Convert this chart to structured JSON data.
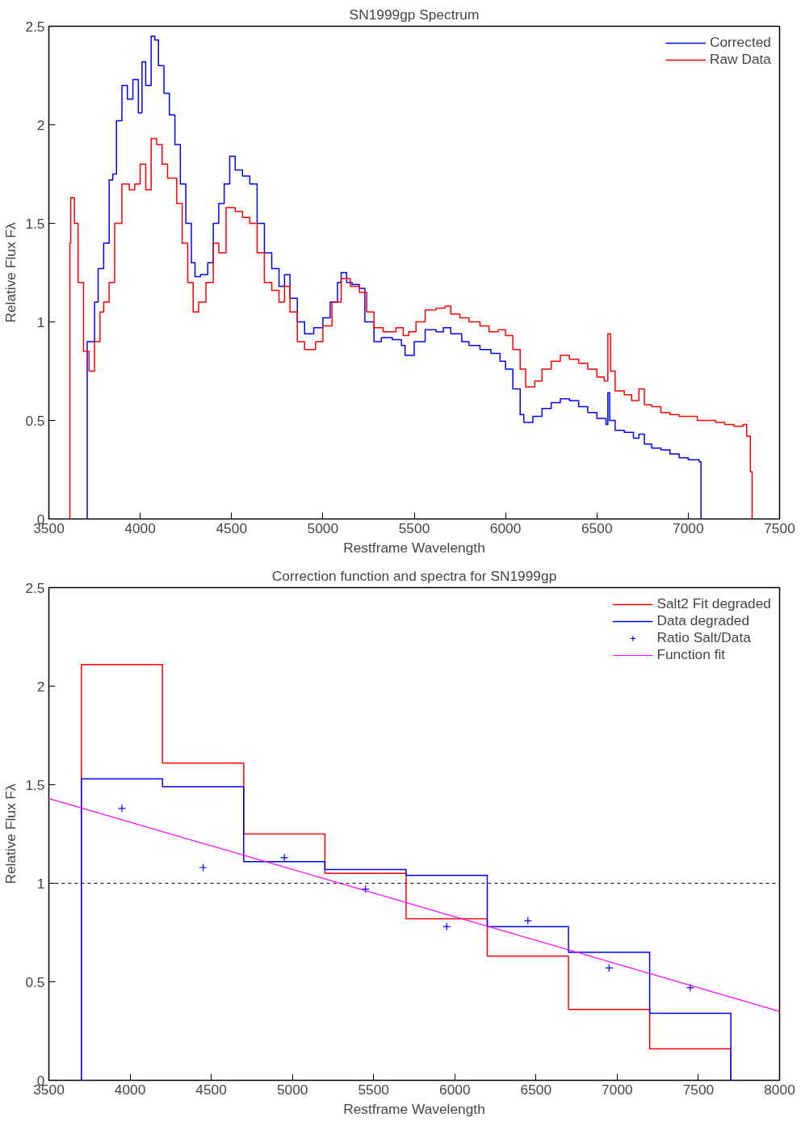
{
  "chart_data": [
    {
      "type": "step",
      "title": "SN1999gp Spectrum",
      "xlabel": "Restframe Wavelength",
      "ylabel": "Relative Flux Fλ",
      "xlim": [
        3500,
        7500
      ],
      "ylim": [
        0,
        2.5
      ],
      "xticks": [
        3500,
        4000,
        4500,
        5000,
        5500,
        6000,
        6500,
        7000,
        7500
      ],
      "yticks": [
        0,
        0.5,
        1,
        1.5,
        2,
        2.5
      ],
      "grid": false,
      "legend": "top right",
      "series": [
        {
          "name": "Corrected",
          "color": "#0000ff",
          "x": [
            3700,
            3710,
            3750,
            3770,
            3800,
            3830,
            3850,
            3870,
            3900,
            3930,
            3960,
            3990,
            4010,
            4030,
            4060,
            4080,
            4100,
            4130,
            4160,
            4190,
            4220,
            4250,
            4280,
            4300,
            4330,
            4370,
            4400,
            4430,
            4460,
            4490,
            4520,
            4560,
            4600,
            4640,
            4680,
            4720,
            4760,
            4790,
            4820,
            4860,
            4900,
            4950,
            5000,
            5040,
            5080,
            5100,
            5130,
            5160,
            5200,
            5230,
            5280,
            5320,
            5380,
            5430,
            5450,
            5500,
            5560,
            5620,
            5660,
            5700,
            5760,
            5800,
            5860,
            5920,
            5970,
            6000,
            6040,
            6080,
            6100,
            6150,
            6200,
            6250,
            6300,
            6350,
            6400,
            6450,
            6500,
            6550,
            6560,
            6570,
            6600,
            6650,
            6700,
            6730,
            6760,
            6800,
            6850,
            6900,
            6950,
            7000,
            7060,
            7070
          ],
          "values": [
            0,
            0.9,
            1.1,
            1.27,
            1.4,
            1.72,
            1.75,
            2.02,
            2.2,
            2.13,
            2.23,
            2.06,
            2.32,
            2.2,
            2.45,
            2.43,
            2.3,
            2.16,
            2.05,
            1.9,
            1.7,
            1.5,
            1.3,
            1.23,
            1.24,
            1.3,
            1.5,
            1.6,
            1.7,
            1.84,
            1.77,
            1.74,
            1.7,
            1.5,
            1.35,
            1.27,
            1.18,
            1.24,
            1.12,
            1.0,
            0.94,
            0.97,
            1.02,
            1.1,
            1.2,
            1.25,
            1.2,
            1.19,
            1.17,
            1.0,
            0.9,
            0.92,
            0.91,
            0.88,
            0.83,
            0.9,
            0.96,
            0.95,
            0.97,
            0.94,
            0.9,
            0.88,
            0.86,
            0.84,
            0.8,
            0.76,
            0.66,
            0.53,
            0.49,
            0.52,
            0.56,
            0.59,
            0.61,
            0.6,
            0.57,
            0.54,
            0.51,
            0.48,
            0.64,
            0.5,
            0.45,
            0.44,
            0.41,
            0.43,
            0.38,
            0.36,
            0.35,
            0.33,
            0.31,
            0.3,
            0.29,
            0
          ]
        },
        {
          "name": "Raw Data",
          "color": "#ff0000",
          "x": [
            3610,
            3615,
            3620,
            3640,
            3660,
            3690,
            3720,
            3750,
            3780,
            3800,
            3830,
            3860,
            3900,
            3940,
            3970,
            4000,
            4030,
            4060,
            4090,
            4120,
            4150,
            4200,
            4230,
            4260,
            4290,
            4320,
            4360,
            4400,
            4430,
            4470,
            4520,
            4560,
            4600,
            4640,
            4680,
            4720,
            4760,
            4790,
            4820,
            4860,
            4900,
            4960,
            5000,
            5050,
            5100,
            5150,
            5200,
            5240,
            5280,
            5330,
            5400,
            5440,
            5470,
            5510,
            5560,
            5620,
            5670,
            5700,
            5750,
            5800,
            5860,
            5910,
            5960,
            6000,
            6040,
            6080,
            6110,
            6160,
            6200,
            6250,
            6300,
            6350,
            6400,
            6450,
            6500,
            6540,
            6560,
            6575,
            6600,
            6650,
            6690,
            6730,
            6760,
            6800,
            6850,
            6900,
            6950,
            7000,
            7050,
            7100,
            7150,
            7200,
            7250,
            7300,
            7320,
            7340,
            7350
          ],
          "values": [
            0,
            1.4,
            1.63,
            1.5,
            1.2,
            0.85,
            0.75,
            0.9,
            1.05,
            1.1,
            1.2,
            1.5,
            1.7,
            1.67,
            1.7,
            1.8,
            1.67,
            1.93,
            1.9,
            1.8,
            1.73,
            1.6,
            1.4,
            1.2,
            1.05,
            1.1,
            1.2,
            1.4,
            1.35,
            1.58,
            1.56,
            1.53,
            1.5,
            1.35,
            1.2,
            1.16,
            1.1,
            1.18,
            1.05,
            0.9,
            0.86,
            0.9,
            0.98,
            1.1,
            1.22,
            1.18,
            1.15,
            1.05,
            0.97,
            0.95,
            0.97,
            0.93,
            0.95,
            1.0,
            1.06,
            1.07,
            1.08,
            1.04,
            1.02,
            1.0,
            0.98,
            0.95,
            0.96,
            0.93,
            0.86,
            0.76,
            0.67,
            0.7,
            0.76,
            0.8,
            0.83,
            0.81,
            0.79,
            0.76,
            0.72,
            0.7,
            0.94,
            0.75,
            0.65,
            0.63,
            0.6,
            0.66,
            0.58,
            0.57,
            0.54,
            0.53,
            0.52,
            0.52,
            0.5,
            0.5,
            0.49,
            0.48,
            0.47,
            0.48,
            0.42,
            0.24,
            0
          ]
        }
      ]
    },
    {
      "type": "step",
      "title": "Correction function and spectra for SN1999gp",
      "xlabel": "Restframe Wavelength",
      "ylabel": "Relative Flux Fλ",
      "xlim": [
        3500,
        8000
      ],
      "ylim": [
        0,
        2.5
      ],
      "xticks": [
        3500,
        4000,
        4500,
        5000,
        5500,
        6000,
        6500,
        7000,
        7500,
        8000
      ],
      "yticks": [
        0,
        0.5,
        1,
        1.5,
        2,
        2.5
      ],
      "grid": false,
      "legend": "top right",
      "ref_lines": [
        {
          "axis": "y",
          "value": 1,
          "color": "#000000",
          "line_style": "dashed"
        }
      ],
      "series": [
        {
          "name": "Salt2 Fit degraded",
          "color": "#ff0000",
          "x": [
            3700,
            3700,
            4200,
            4700,
            5200,
            5700,
            6200,
            6700,
            7200,
            7700
          ],
          "values": [
            0,
            2.11,
            1.61,
            1.25,
            1.05,
            0.82,
            0.63,
            0.36,
            0.16,
            0
          ]
        },
        {
          "name": "Data degraded",
          "color": "#0000ff",
          "x": [
            3700,
            3700,
            4200,
            4700,
            5200,
            5700,
            6200,
            6700,
            7200,
            7700
          ],
          "values": [
            0,
            1.53,
            1.49,
            1.11,
            1.07,
            1.04,
            0.78,
            0.65,
            0.34,
            0
          ]
        },
        {
          "name": "Ratio Salt/Data",
          "type": "scatter",
          "marker": "cross",
          "color": "#0000ff",
          "x": [
            3950,
            4450,
            4950,
            5450,
            5950,
            6450,
            6950,
            7450
          ],
          "values": [
            1.38,
            1.08,
            1.13,
            0.97,
            0.78,
            0.81,
            0.57,
            0.47
          ]
        },
        {
          "name": "Function fit",
          "type": "line",
          "color": "#ff00ff",
          "x": [
            3500,
            8000
          ],
          "values": [
            1.43,
            0.35
          ]
        }
      ]
    }
  ]
}
